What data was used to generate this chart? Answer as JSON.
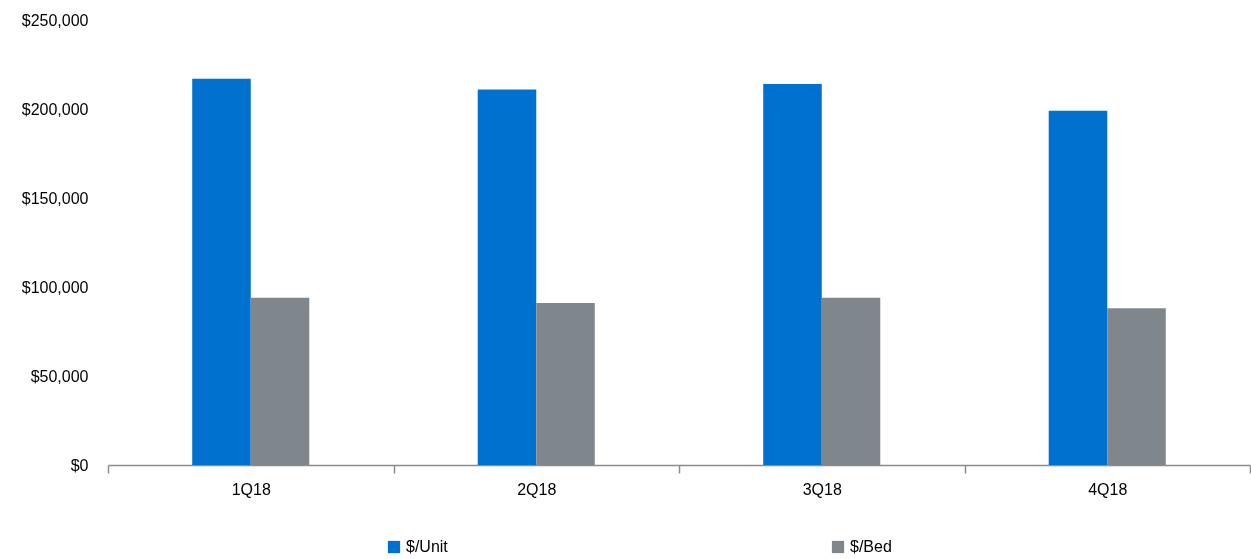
{
  "chart_data": {
    "type": "bar",
    "categories": [
      "1Q18",
      "2Q18",
      "3Q18",
      "4Q18"
    ],
    "series": [
      {
        "name": "$/Unit",
        "color": "#0071ce",
        "values": [
          217000,
          211000,
          214000,
          199000
        ]
      },
      {
        "name": "$/Bed",
        "color": "#7f878d",
        "values": [
          94000,
          91000,
          94000,
          88000
        ]
      }
    ],
    "ylim": [
      0,
      250000
    ],
    "yticks": [
      {
        "value": 0,
        "label": "$0"
      },
      {
        "value": 50000,
        "label": "$50,000"
      },
      {
        "value": 100000,
        "label": "$100,000"
      },
      {
        "value": 150000,
        "label": "$150,000"
      },
      {
        "value": 200000,
        "label": "$200,000"
      },
      {
        "value": 250000,
        "label": "$250,000"
      }
    ],
    "legend": "bottom"
  }
}
